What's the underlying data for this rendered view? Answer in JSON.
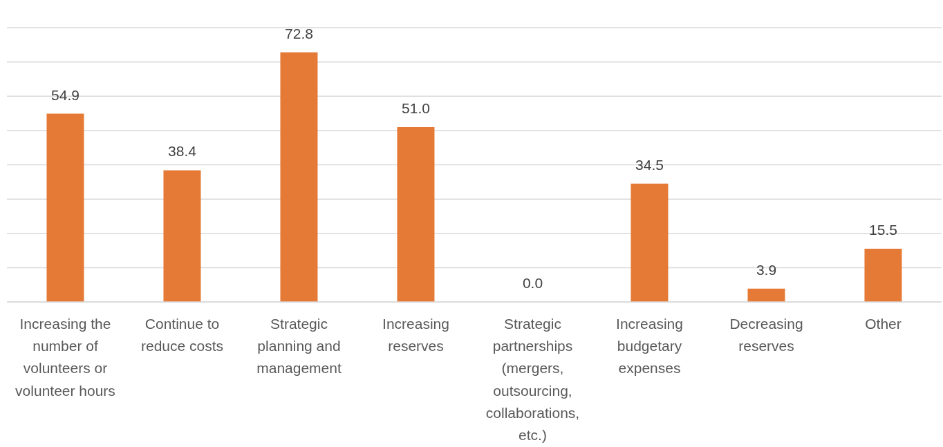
{
  "chart_data": {
    "type": "bar",
    "categories": [
      "Increasing the number of volunteers or volunteer hours",
      "Continue to reduce costs",
      "Strategic planning and management",
      "Increasing reserves",
      "Strategic partnerships (mergers, outsourcing, collaborations, etc.)",
      "Increasing budgetary expenses",
      "Decreasing reserves",
      "Other"
    ],
    "values": [
      54.9,
      38.4,
      72.8,
      51.0,
      0.0,
      34.5,
      3.9,
      15.5
    ],
    "value_labels": [
      "54.9",
      "38.4",
      "72.8",
      "51.0",
      "0.0",
      "34.5",
      "3.9",
      "15.5"
    ],
    "color": "#e57a36",
    "ylim": [
      0,
      80
    ],
    "yticks": [
      {
        "value": 0,
        "label": null
      },
      {
        "value": 10,
        "label": null
      },
      {
        "value": 20,
        "label": null
      },
      {
        "value": 30,
        "label": null
      },
      {
        "value": 40,
        "label": null
      },
      {
        "value": 50,
        "label": null
      },
      {
        "value": 60,
        "label": null
      },
      {
        "value": 70,
        "label": null
      },
      {
        "value": 80,
        "label": null
      }
    ],
    "grid": "y",
    "tick_labels": "x"
  }
}
